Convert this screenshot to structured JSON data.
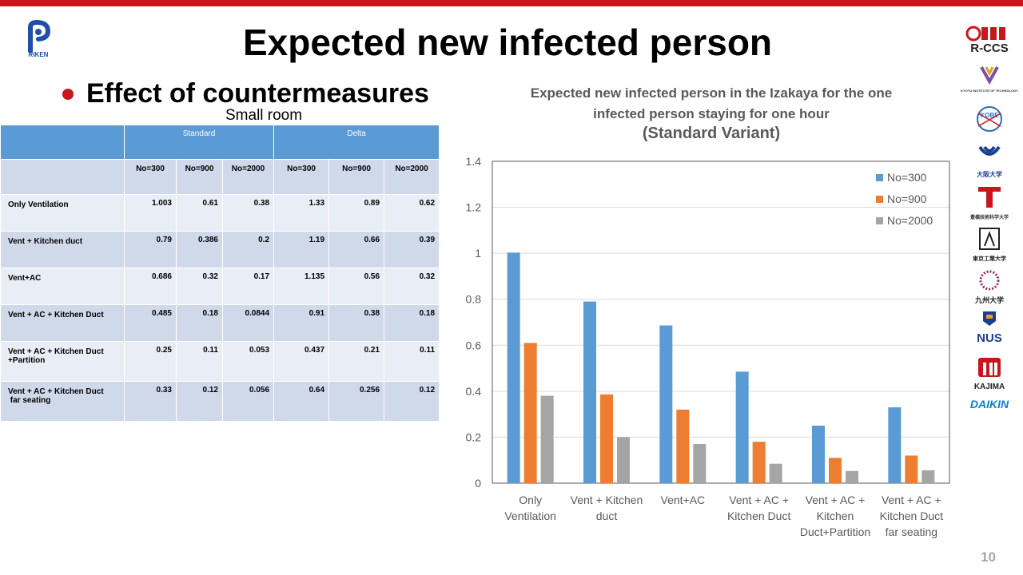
{
  "slide": {
    "title": "Expected new infected person",
    "bullet": "Effect of countermeasures",
    "subtitle": "Small room",
    "page_number": "10",
    "logos": [
      "R-CCS",
      "RIKEN",
      "KYOTO INSTITUTE OF TECHNOLOGY",
      "KOBE",
      "大阪大学",
      "豊橋技術科学大学",
      "東京工業大学",
      "九州大学",
      "NUS",
      "KAJIMA",
      "DAIKIN"
    ]
  },
  "table": {
    "group_headers": [
      "Standard",
      "Delta"
    ],
    "columns": [
      "No=300",
      "No=900",
      "No=2000",
      "No=300",
      "No=900",
      "No=2000"
    ],
    "rows": [
      {
        "label": [
          "Only Ventilation"
        ],
        "values": [
          "1.003",
          "0.61",
          "0.38",
          "1.33",
          "0.89",
          "0.62"
        ]
      },
      {
        "label": [
          "Vent + Kitchen duct"
        ],
        "values": [
          "0.79",
          "0.386",
          "0.2",
          "1.19",
          "0.66",
          "0.39"
        ]
      },
      {
        "label": [
          "Vent+AC"
        ],
        "values": [
          "0.686",
          "0.32",
          "0.17",
          "1.135",
          "0.56",
          "0.32"
        ]
      },
      {
        "label": [
          "Vent + AC + Kitchen Duct"
        ],
        "values": [
          "0.485",
          "0.18",
          "0.0844",
          "0.91",
          "0.38",
          "0.18"
        ]
      },
      {
        "label": [
          "Vent + AC + Kitchen Duct",
          "+Partition"
        ],
        "values": [
          "0.25",
          "0.11",
          "0.053",
          "0.437",
          "0.21",
          "0.11"
        ]
      },
      {
        "label": [
          "Vent + AC + Kitchen Duct",
          " far seating"
        ],
        "values": [
          "0.33",
          "0.12",
          "0.056",
          "0.64",
          "0.256",
          "0.12"
        ]
      }
    ]
  },
  "chart_data": {
    "type": "bar",
    "title_lines": [
      "Expected new infected person in the Izakaya for the one",
      "infected person staying for one hour"
    ],
    "subtitle": "(Standard Variant)",
    "categories": [
      [
        "Only",
        "Ventilation"
      ],
      [
        "Vent + Kitchen",
        "duct"
      ],
      [
        "Vent+AC"
      ],
      [
        "Vent + AC +",
        "Kitchen Duct"
      ],
      [
        "Vent + AC +",
        "Kitchen",
        "Duct+Partition"
      ],
      [
        "Vent + AC +",
        "Kitchen Duct",
        "far seating"
      ]
    ],
    "series": [
      {
        "name": "No=300",
        "color": "#5b9bd5",
        "values": [
          1.003,
          0.79,
          0.686,
          0.485,
          0.25,
          0.33
        ]
      },
      {
        "name": "No=900",
        "color": "#ed7d31",
        "values": [
          0.61,
          0.386,
          0.32,
          0.18,
          0.11,
          0.12
        ]
      },
      {
        "name": "No=2000",
        "color": "#a5a5a5",
        "values": [
          0.38,
          0.2,
          0.17,
          0.0844,
          0.053,
          0.056
        ]
      }
    ],
    "yticks": [
      "0",
      "0.2",
      "0.4",
      "0.6",
      "0.8",
      "1",
      "1.2",
      "1.4"
    ],
    "ylim": [
      0,
      1.4
    ],
    "grid": true,
    "legend_position": "top-right"
  }
}
